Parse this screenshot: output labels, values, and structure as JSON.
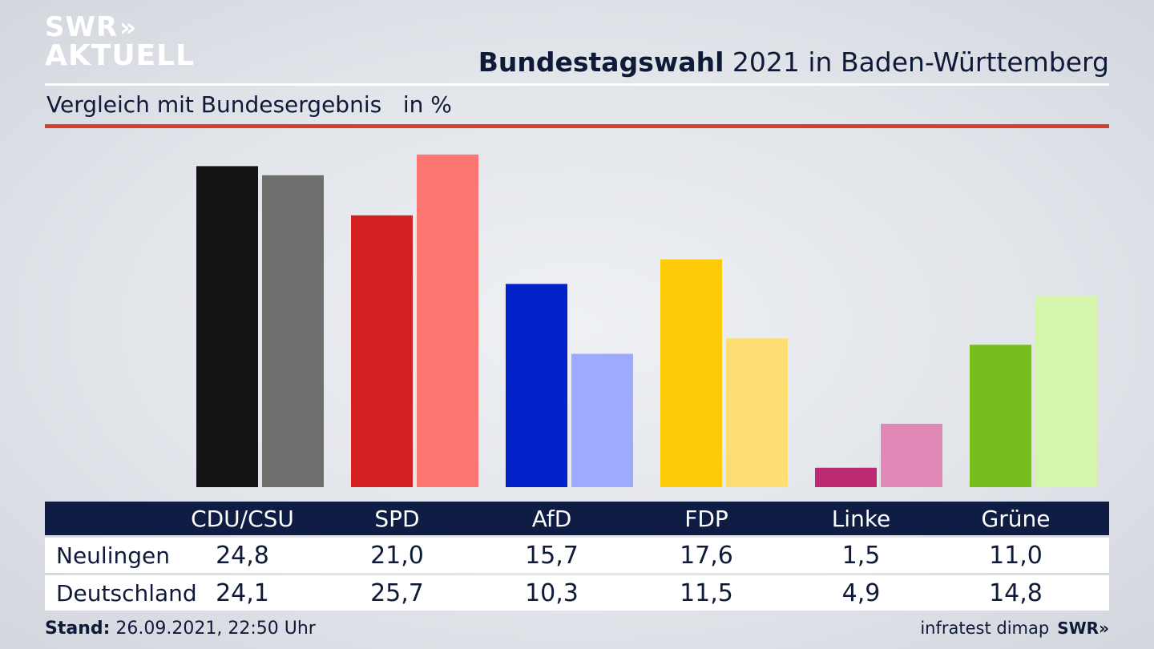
{
  "logo": {
    "line1": "SWR",
    "chevrons": "»",
    "line2": "AKTUELL"
  },
  "header": {
    "title_bold": "Bundestagswahl",
    "title_rest": " 2021 in Baden-Württemberg",
    "subtitle": "Vergleich mit Bundesergebnis   in %"
  },
  "footer": {
    "stand_label": "Stand:",
    "stand_value": " 26.09.2021, 22:50 Uhr",
    "source": "infratest dimap",
    "brand": "SWR»"
  },
  "chart_data": {
    "type": "bar",
    "title": "Bundestagswahl 2021 in Baden-Württemberg",
    "subtitle": "Vergleich mit Bundesergebnis   in %",
    "categories": [
      "CDU/CSU",
      "SPD",
      "AfD",
      "FDP",
      "Linke",
      "Grüne"
    ],
    "series": [
      {
        "name": "Neulingen",
        "values": [
          24.8,
          21.0,
          15.7,
          17.6,
          1.5,
          11.0
        ],
        "display": [
          "24,8",
          "21,0",
          "15,7",
          "17,6",
          "1,5",
          "11,0"
        ],
        "colors": [
          "#141414",
          "#d42020",
          "#0122c8",
          "#fecb0a",
          "#bb2a72",
          "#76bd1d"
        ]
      },
      {
        "name": "Deutschland",
        "values": [
          24.1,
          25.7,
          10.3,
          11.5,
          4.9,
          14.8
        ],
        "display": [
          "24,1",
          "25,7",
          "10,3",
          "11,5",
          "4,9",
          "14,8"
        ],
        "colors": [
          "#6e6e6c",
          "#fd7671",
          "#9eaaff",
          "#fede72",
          "#e088b6",
          "#d3f6aa"
        ]
      }
    ],
    "ylim": [
      0,
      26
    ],
    "grid": false,
    "legend": "table below chart"
  }
}
